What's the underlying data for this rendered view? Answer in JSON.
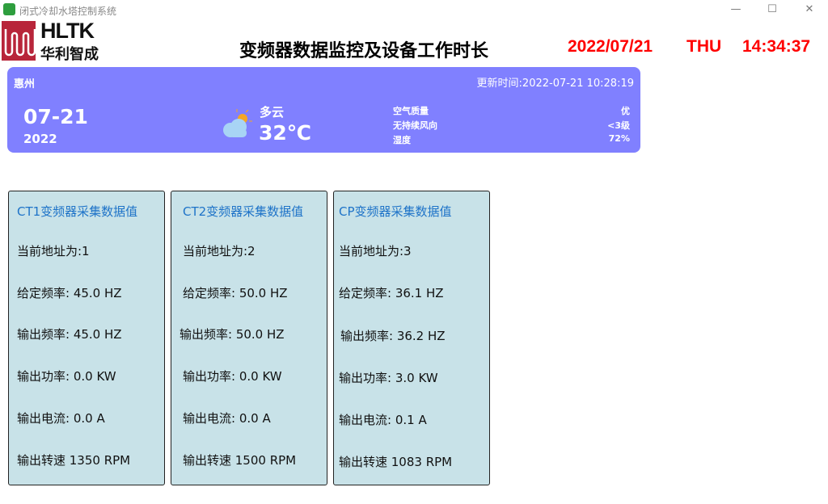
{
  "window": {
    "title": "闭式冷却水塔控制系统",
    "minimize": "—",
    "maximize": "☐",
    "close": "✕"
  },
  "logo": {
    "en": "HLTK",
    "cn": "华利智成"
  },
  "header": {
    "title": "变频器数据监控及设备工作时长",
    "date": "2022/07/21",
    "weekday": "THU",
    "time": "14:34:37"
  },
  "weather": {
    "city": "惠州",
    "update": "更新时间:2022-07-21 10:28:19",
    "date": "07-21",
    "year": "2022",
    "condition": "多云",
    "temp": "32℃",
    "rows": [
      {
        "label": "空气质量",
        "value": "优"
      },
      {
        "label": "无持续风向",
        "value": "<3级"
      },
      {
        "label": "湿度",
        "value": "72%"
      }
    ]
  },
  "cards": [
    {
      "title": "CT1变频器采集数据值",
      "addr": "当前地址为:1",
      "set_freq": "给定频率:  45.0 HZ",
      "out_freq": "输出频率:  45.0 HZ",
      "power": "输出功率:  0.0 KW",
      "current": "输出电流:  0.0 A",
      "speed": "输出转速  1350 RPM"
    },
    {
      "title": "CT2变频器采集数据值",
      "addr": "当前地址为:2",
      "set_freq": "给定频率:  50.0 HZ",
      "out_freq": "输出频率:  50.0 HZ",
      "power": "输出功率:  0.0 KW",
      "current": "输出电流:  0.0 A",
      "speed": "输出转速  1500 RPM"
    },
    {
      "title": "CP变频器采集数据值",
      "addr": "当前地址为:3",
      "set_freq": "给定频率:  36.1 HZ",
      "out_freq": "输出频率:  36.2 HZ",
      "power": "输出功率:  3.0 KW",
      "current": "输出电流:  0.1 A",
      "speed": "输出转速  1083 RPM"
    }
  ]
}
